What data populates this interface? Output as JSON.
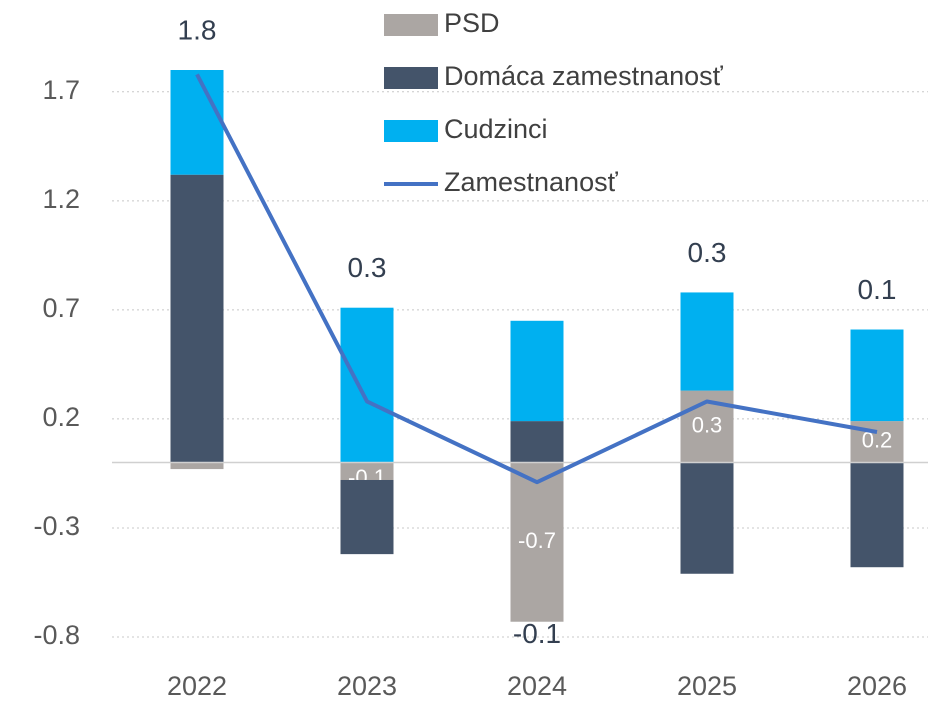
{
  "chart_data": {
    "type": "stacked_bar_line",
    "categories": [
      "2022",
      "2023",
      "2024",
      "2025",
      "2026"
    ],
    "series": [
      {
        "name": "PSD",
        "color": "#aba6a3",
        "values": [
          -0.03,
          -0.08,
          -0.73,
          0.33,
          0.19
        ],
        "value_labels": [
          null,
          "-0.1",
          "-0.7",
          "0.3",
          "0.2"
        ]
      },
      {
        "name": "Domáca zamestnanosť",
        "color": "#44546a",
        "values": [
          1.32,
          -0.34,
          0.19,
          -0.51,
          -0.48
        ]
      },
      {
        "name": "Cudzinci",
        "color": "#00b0f0",
        "values": [
          0.48,
          0.71,
          0.46,
          0.45,
          0.42
        ]
      },
      {
        "name": "Zamestnanosť",
        "color": "#4472c4",
        "type": "line",
        "values": [
          1.78,
          0.28,
          -0.09,
          0.28,
          0.14
        ],
        "value_labels": [
          "1.8",
          "0.3",
          "-0.1",
          "0.3",
          "0.1"
        ]
      }
    ],
    "ylim": [
      -0.8,
      1.8
    ],
    "yticks": [
      1.7,
      1.2,
      0.7,
      0.2,
      -0.3,
      -0.8
    ],
    "grid": true,
    "legend": "top"
  }
}
